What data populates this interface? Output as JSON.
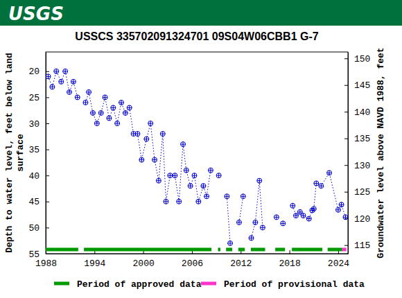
{
  "banner": {
    "logo": "USGS"
  },
  "chart_data": {
    "type": "line",
    "title": "USSCS 335702091324701 09S04W06CBB1 G-7",
    "ylabel": [
      "Depth to water level, feet below land",
      "surface"
    ],
    "y2label": "Groundwater level above NAVD 1988, feet",
    "xlim": [
      1988,
      2025.2
    ],
    "xticks": [
      1988,
      1994,
      2000,
      2006,
      2012,
      2018,
      2024
    ],
    "ylim": [
      55,
      16.3
    ],
    "yticks": [
      20,
      25,
      30,
      35,
      40,
      45,
      50,
      55
    ],
    "y2lim": [
      113.4,
      151.2
    ],
    "y2ticks": [
      115,
      120,
      125,
      130,
      135,
      140,
      145,
      150
    ],
    "grid": false,
    "legend": "bottom",
    "series": [
      {
        "name": "Depth to water level",
        "color": "#0000cc",
        "marker": "circle-plus",
        "line_style": "dotted",
        "x": [
          1988.3,
          1988.8,
          1989.3,
          1989.9,
          1990.4,
          1990.9,
          1991.4,
          1991.9,
          1992.4,
          1992.9,
          1993.3,
          1993.8,
          1994.3,
          1994.8,
          1995.3,
          1995.8,
          1996.3,
          1996.8,
          1997.3,
          1997.8,
          1998.3,
          1998.8,
          1999.3,
          1999.8,
          2000.4,
          2000.9,
          2001.4,
          2001.9,
          2002.4,
          2002.8,
          2003.3,
          2003.9,
          2004.4,
          2004.9,
          2005.3,
          2005.8,
          2006.3,
          2006.8,
          2007.4,
          2007.8,
          2008.3,
          2008.8,
          2009.3,
          2009.8,
          2010.3,
          2010.7,
          2011.2,
          2011.8,
          2012.3,
          2012.8,
          2013.3,
          2013.8,
          2014.3,
          2014.7,
          2015.5,
          2016.4,
          2016.8,
          2017.2,
          2017.8,
          2018.4,
          2018.8,
          2019.3,
          2019.7,
          2020.4,
          2020.8,
          2021.0,
          2021.3,
          2021.9,
          2022.9,
          2024.0,
          2024.4,
          2024.9
        ],
        "values": [
          21,
          23,
          20,
          22,
          20,
          24,
          22,
          25,
          null,
          26,
          24,
          28,
          30,
          28,
          25,
          29,
          27,
          30,
          26,
          28,
          27,
          32,
          32,
          37,
          33,
          30,
          37,
          41,
          32,
          45,
          40,
          40,
          45,
          34,
          39,
          42,
          40,
          45,
          42,
          44,
          39,
          null,
          40,
          null,
          44,
          53,
          null,
          49,
          44,
          null,
          52,
          49,
          41,
          50,
          null,
          48,
          null,
          49.2,
          null,
          45.8,
          47.7,
          47,
          47.7,
          48.3,
          46.7,
          46.4,
          41.5,
          42,
          39.5,
          46.6,
          45.6,
          48
        ]
      }
    ],
    "periods": [
      {
        "name": "Period of approved data",
        "color": "#009900",
        "ranges": [
          [
            1988,
            1992.0
          ],
          [
            1992.7,
            2008.4
          ],
          [
            2009.2,
            2009.5
          ],
          [
            2010.2,
            2010.95
          ],
          [
            2011.7,
            2012.5
          ],
          [
            2013.25,
            2015.0
          ],
          [
            2016.25,
            2017.45
          ],
          [
            2018.3,
            2022.05
          ],
          [
            2022.7,
            2024.5
          ]
        ]
      },
      {
        "name": "Period of provisional data",
        "color": "#ff33cc",
        "ranges": [
          [
            2024.5,
            2025.0
          ]
        ]
      }
    ]
  }
}
